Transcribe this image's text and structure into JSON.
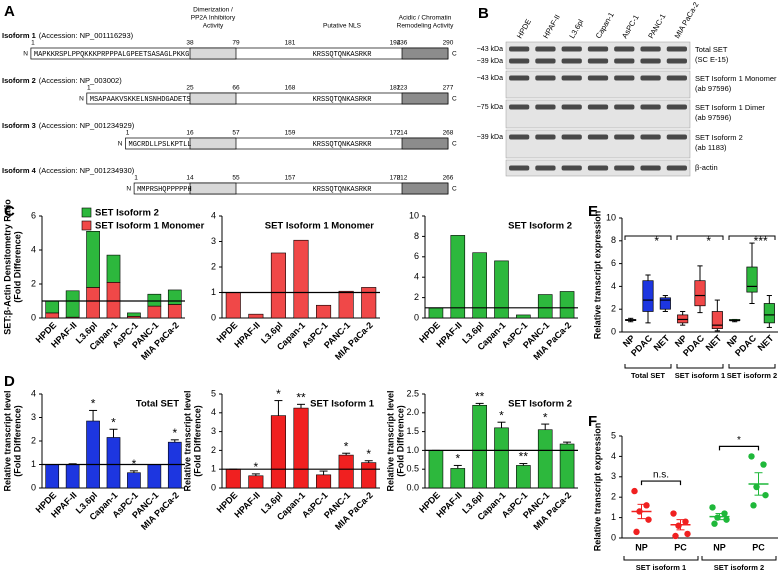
{
  "panel_labels": [
    "A",
    "B",
    "C",
    "D",
    "E",
    "F"
  ],
  "domain_diagram": {
    "headers": [
      [
        "Dimerization /",
        "PP2A Inhibitory",
        "Activity"
      ],
      [
        "Putative NLS"
      ],
      [
        "Acidic / Chromatin",
        "Remodeling Activity"
      ]
    ],
    "n_label": "N",
    "c_label": "C",
    "isoforms": [
      {
        "name": "Isoform 1",
        "accession": "(Accession: NP_001116293)",
        "sequence": "MAPKKRSPLPPQKKKPRPPPALGPEETSASAGLPKKG",
        "nls": "KRSSQTQNKASRKR",
        "positions": [
          1,
          38,
          79,
          181,
          194,
          236,
          290
        ]
      },
      {
        "name": "Isoform 2",
        "accession": "(Accession: NP_003002)",
        "sequence": "MSAPAAKVSKKELNSNHDGADETS",
        "nls": "KRSSQTQNKASRKR",
        "positions": [
          1,
          25,
          66,
          168,
          181,
          223,
          277
        ]
      },
      {
        "name": "Isoform 3",
        "accession": "(Accession: NP_001234929)",
        "sequence": "MGCRDLLPSLKPTLL",
        "nls": "KRSSQTQNKASRKR",
        "positions": [
          1,
          16,
          57,
          159,
          172,
          214,
          268
        ]
      },
      {
        "name": "Isoform 4",
        "accession": "(Accession: NP_001234930)",
        "sequence": "MMPRSHQPPPPPH",
        "nls": "KRSSQTQNKASRKR",
        "positions": [
          1,
          14,
          55,
          157,
          170,
          212,
          266
        ]
      }
    ]
  },
  "western_blot": {
    "lanes": [
      "HPDE",
      "HPAF-II",
      "L3.6pl",
      "Capan-1",
      "AsPC-1",
      "PANC-1",
      "MIA PaCa-2"
    ],
    "rows": [
      {
        "markers": [
          "~43 kDa",
          "~39 kDa"
        ],
        "label": [
          "Total SET",
          "(SC E-15)"
        ]
      },
      {
        "markers": [
          "~43 kDa"
        ],
        "label": [
          "SET Isoform 1 Monomer",
          "(ab 97596)"
        ]
      },
      {
        "markers": [
          "~75 kDa"
        ],
        "label": [
          "SET Isoform 1 Dimer",
          "(ab 97596)"
        ]
      },
      {
        "markers": [
          "~39 kDa"
        ],
        "label": [
          "SET Isoform 2",
          "(ab 1183)"
        ]
      },
      {
        "markers": [],
        "label": [
          "β-actin"
        ]
      }
    ]
  },
  "chart_data": [
    {
      "type": "stacked_bar",
      "ylabel": [
        "SET:β-Actin Densitometry Ratio",
        "(Fold Difference)"
      ],
      "categories": [
        "HPDE",
        "HPAF-II",
        "L3.6pl",
        "Capan-1",
        "AsPC-1",
        "PANC-1",
        "MIA PaCa-2"
      ],
      "series": [
        {
          "name": "SET Isoform 1 Monomer",
          "color": "#f04848",
          "values": [
            0.3,
            0.05,
            1.8,
            2.1,
            0.1,
            0.7,
            0.8
          ]
        },
        {
          "name": "SET Isoform 2",
          "color": "#2db83d",
          "values": [
            0.7,
            1.55,
            3.3,
            1.6,
            0.2,
            0.7,
            0.85
          ]
        }
      ],
      "ylim": [
        0,
        6
      ],
      "yticks": [
        0,
        2,
        4,
        6
      ],
      "reference_line": 1,
      "legend": "top-left"
    },
    {
      "type": "bar",
      "title": "SET Isoform 1 Monomer",
      "color": "#f04848",
      "categories": [
        "HPDE",
        "HPAF-II",
        "L3.6pl",
        "Capan-1",
        "AsPC-1",
        "PANC-1",
        "MIA PaCa-2"
      ],
      "values": [
        1.0,
        0.15,
        2.55,
        3.05,
        0.5,
        1.05,
        1.2
      ],
      "ylim": [
        0,
        4
      ],
      "yticks": [
        0,
        1,
        2,
        3,
        4
      ],
      "reference_line": 1
    },
    {
      "type": "bar",
      "title": "SET Isoform 2",
      "color": "#2db83d",
      "categories": [
        "HPDE",
        "HPAF-II",
        "L3.6pl",
        "Capan-1",
        "AsPC-1",
        "PANC-1",
        "MIA PaCa-2"
      ],
      "values": [
        1.0,
        8.1,
        6.4,
        5.6,
        0.3,
        2.3,
        2.6
      ],
      "ylim": [
        0,
        10
      ],
      "yticks": [
        0,
        2,
        4,
        6,
        8,
        10
      ],
      "reference_line": 1
    },
    {
      "type": "bar",
      "title": "Total SET",
      "color": "#1d36e0",
      "ylabel": [
        "Relative transcript level",
        "(Fold Difference)"
      ],
      "categories": [
        "HPDE",
        "HPAF-II",
        "L3.6pl",
        "Capan-1",
        "AsPC-1",
        "PANC-1",
        "MIA PaCa-2"
      ],
      "values": [
        1.0,
        1.0,
        2.85,
        2.15,
        0.65,
        1.0,
        1.95
      ],
      "errors": [
        0,
        0.03,
        0.45,
        0.35,
        0.08,
        0,
        0.1
      ],
      "significance": [
        null,
        null,
        "*",
        "*",
        "*",
        null,
        "*"
      ],
      "ylim": [
        0,
        4
      ],
      "yticks": [
        0,
        1,
        2,
        3,
        4
      ],
      "reference_line": 1
    },
    {
      "type": "bar",
      "title": "SET Isoform 1",
      "color": "#f02020",
      "ylabel": [
        "Relative transcript level",
        "(Fold Difference)"
      ],
      "categories": [
        "HPDE",
        "HPAF-II",
        "L3.6pl",
        "Capan-1",
        "AsPC-1",
        "PANC-1",
        "MIA PaCa-2"
      ],
      "values": [
        1.0,
        0.65,
        3.85,
        4.25,
        0.7,
        1.75,
        1.35
      ],
      "errors": [
        0,
        0.1,
        0.8,
        0.2,
        0.2,
        0.1,
        0.1
      ],
      "significance": [
        null,
        "*",
        "*",
        "**",
        null,
        "*",
        "*"
      ],
      "ylim": [
        0,
        5
      ],
      "yticks": [
        0,
        1,
        2,
        3,
        4,
        5
      ],
      "reference_line": 1
    },
    {
      "type": "bar",
      "title": "SET Isoform 2",
      "color": "#2db83d",
      "ylabel": [
        "Relative transcript level",
        "(Fold Difference)"
      ],
      "categories": [
        "HPDE",
        "HPAF-II",
        "L3.6pl",
        "Capan-1",
        "AsPC-1",
        "PANC-1",
        "MIA PaCa-2"
      ],
      "values": [
        1.0,
        0.52,
        2.2,
        1.6,
        0.6,
        1.55,
        1.17
      ],
      "errors": [
        0,
        0.08,
        0.05,
        0.15,
        0.05,
        0.15,
        0.05
      ],
      "significance": [
        null,
        "*",
        "**",
        "*",
        "**",
        "*",
        null
      ],
      "ylim": [
        0,
        2.5
      ],
      "yticks": [
        {
          "value": 0,
          "label": "0.0"
        },
        0.5,
        {
          "value": 1,
          "label": "1.0"
        },
        1.5,
        {
          "value": 2,
          "label": "2.0"
        },
        2.5
      ],
      "reference_line": 1
    },
    {
      "type": "box",
      "ylabel": [
        "Relative transcript expression"
      ],
      "ylim": [
        0,
        10
      ],
      "yticks": [
        0,
        2,
        4,
        6,
        8,
        10
      ],
      "groups": [
        {
          "name": "Total SET",
          "color": "#1d36e0",
          "categories": [
            "NP",
            "PDAC",
            "NET"
          ],
          "significance": "*",
          "boxes": [
            {
              "min": 0.9,
              "q1": 1.0,
              "median": 1.05,
              "q3": 1.1,
              "max": 1.2
            },
            {
              "min": 0.8,
              "q1": 1.8,
              "median": 2.8,
              "q3": 4.5,
              "max": 5.0
            },
            {
              "min": 1.8,
              "q1": 2.0,
              "median": 2.8,
              "q3": 3.0,
              "max": 3.2
            }
          ]
        },
        {
          "name": "SET isoform 1",
          "color": "#f04848",
          "categories": [
            "NP",
            "PDAC",
            "NET"
          ],
          "significance": "*",
          "boxes": [
            {
              "min": 0.6,
              "q1": 0.8,
              "median": 1.1,
              "q3": 1.5,
              "max": 1.8
            },
            {
              "min": 1.7,
              "q1": 2.3,
              "median": 3.2,
              "q3": 4.5,
              "max": 5.8
            },
            {
              "min": 0.1,
              "q1": 0.3,
              "median": 0.6,
              "q3": 1.8,
              "max": 2.8
            }
          ]
        },
        {
          "name": "SET isoform 2",
          "color": "#2db83d",
          "categories": [
            "NP",
            "PDAC",
            "NET"
          ],
          "significance": "***",
          "boxes": [
            {
              "min": 0.9,
              "q1": 1.0,
              "median": 1.0,
              "q3": 1.1,
              "max": 1.1
            },
            {
              "min": 2.5,
              "q1": 3.5,
              "median": 4.0,
              "q3": 5.7,
              "max": 7.8
            },
            {
              "min": 0.4,
              "q1": 0.8,
              "median": 1.5,
              "q3": 2.5,
              "max": 3.2
            }
          ]
        }
      ]
    },
    {
      "type": "dot",
      "ylabel": [
        "Relative transcript expression"
      ],
      "ylim": [
        0,
        5
      ],
      "yticks": [
        0,
        1,
        2,
        3,
        4,
        5
      ],
      "groups": [
        {
          "name": "SET isoform 1",
          "color": "#f02020",
          "categories": [
            "NP",
            "PC"
          ],
          "significance": "n.s.",
          "points": [
            [
              2.3,
              1.6,
              1.3,
              0.9,
              0.3
            ],
            [
              1.2,
              0.8,
              0.6,
              0.2,
              0.1
            ]
          ],
          "mean": [
            1.3,
            0.65
          ],
          "sem": [
            0.35,
            0.25
          ]
        },
        {
          "name": "SET isoform 2",
          "color": "#1fb83a",
          "categories": [
            "NP",
            "PC"
          ],
          "significance": "*",
          "points": [
            [
              1.5,
              1.2,
              1.0,
              0.9,
              0.7
            ],
            [
              4.0,
              3.6,
              2.5,
              2.1,
              1.6
            ]
          ],
          "mean": [
            1.05,
            2.65
          ],
          "sem": [
            0.15,
            0.55
          ]
        }
      ]
    }
  ]
}
